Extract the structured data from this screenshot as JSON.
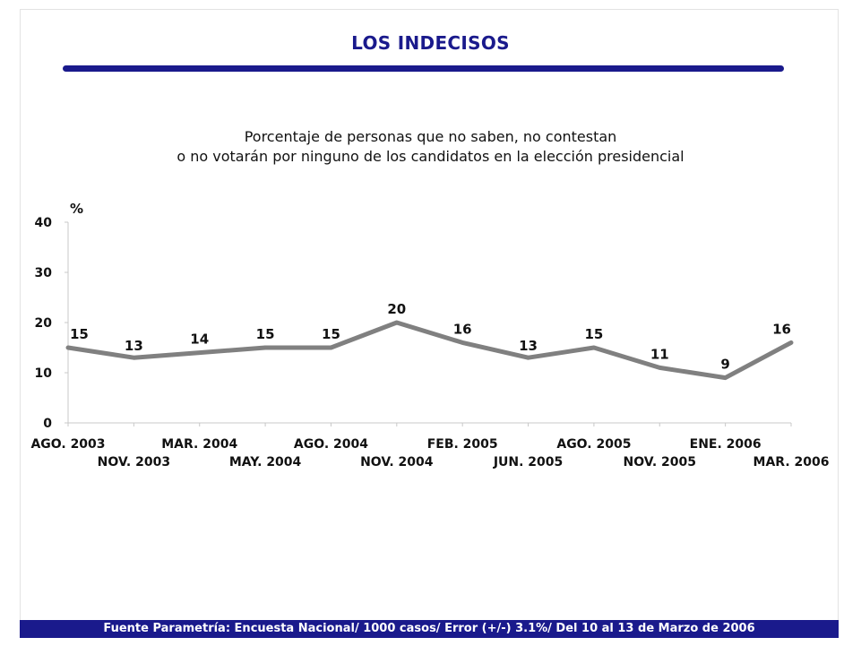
{
  "header": {
    "title": "LOS INDECISOS",
    "subtitle_line1": "Porcentaje de personas que no saben, no contestan",
    "subtitle_line2": "o no votarán por ninguno de los candidatos en la elección presidencial"
  },
  "footer": {
    "text": "Fuente Parametría: Encuesta Nacional/ 1000 casos/ Error (+/-) 3.1%/ Del 10 al 13 de Marzo  de 2006"
  },
  "colors": {
    "title": "#1a1a8c",
    "line": "#808080",
    "footer_bg": "#1a1a8c"
  },
  "chart_data": {
    "type": "line",
    "title": "",
    "xlabel": "",
    "ylabel": "%",
    "ylim": [
      0,
      40
    ],
    "yticks": [
      0,
      10,
      20,
      30,
      40
    ],
    "grid": false,
    "legend": "none",
    "categories": [
      "AGO. 2003",
      "NOV. 2003",
      "MAR. 2004",
      "MAY. 2004",
      "AGO. 2004",
      "NOV. 2004",
      "FEB. 2005",
      "JUN. 2005",
      "AGO. 2005",
      "NOV. 2005",
      "ENE. 2006",
      "MAR. 2006"
    ],
    "series": [
      {
        "values": [
          15,
          13,
          14,
          15,
          15,
          20,
          16,
          13,
          15,
          11,
          9,
          16
        ]
      }
    ]
  }
}
